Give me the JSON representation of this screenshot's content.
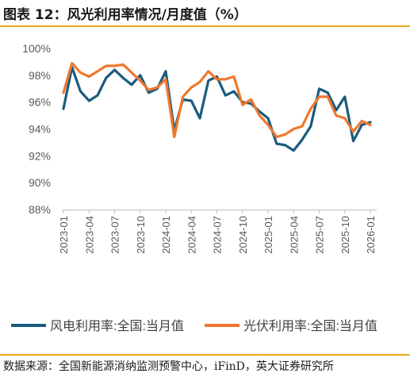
{
  "title": "图表 12：风光利用率情况/月度值（%）",
  "source": "数据来源：全国新能源消纳监测预警中心，iFinD，英大证券研究所",
  "colors": {
    "wind": "#1b5b7e",
    "solar": "#f0782d",
    "accent_rule": "#f0a81a",
    "axis_text": "#595959"
  },
  "chart_data": {
    "type": "line",
    "title": "图表 12：风光利用率情况/月度值（%）",
    "xlabel": "",
    "ylabel": "",
    "ylim": [
      88,
      100
    ],
    "yticks": [
      88,
      90,
      92,
      94,
      96,
      98,
      100
    ],
    "ytick_labels": [
      "88%",
      "90%",
      "92%",
      "94%",
      "96%",
      "98%",
      "100%"
    ],
    "x_tick_labels": [
      "2023-01",
      "2023-04",
      "2023-07",
      "2023-10",
      "2024-01",
      "2024-04",
      "2024-07",
      "2024-10",
      "2025-01",
      "2025-04",
      "2025-07",
      "2025-10",
      "2026-01"
    ],
    "x": [
      "2023-01",
      "2023-02",
      "2023-03",
      "2023-04",
      "2023-05",
      "2023-06",
      "2023-07",
      "2023-08",
      "2023-09",
      "2023-10",
      "2023-11",
      "2023-12",
      "2024-01",
      "2024-02",
      "2024-03",
      "2024-04",
      "2024-05",
      "2024-06",
      "2024-07",
      "2024-08",
      "2024-09",
      "2024-10",
      "2024-11",
      "2024-12",
      "2025-01",
      "2025-02",
      "2025-03",
      "2025-04",
      "2025-05",
      "2025-06",
      "2025-07",
      "2025-08",
      "2025-09",
      "2025-10",
      "2025-11",
      "2025-12",
      "2026-01"
    ],
    "legend_position": "bottom",
    "grid": false,
    "series": [
      {
        "name": "风电利用率:全国:当月值",
        "color": "#1b5b7e",
        "values": [
          95.5,
          98.6,
          96.8,
          96.1,
          96.5,
          97.8,
          98.4,
          97.8,
          97.3,
          98.0,
          96.7,
          97.0,
          98.3,
          93.9,
          96.2,
          96.1,
          94.8,
          97.6,
          97.9,
          96.5,
          96.8,
          96.0,
          95.9,
          95.3,
          94.8,
          92.9,
          92.8,
          92.4,
          93.2,
          94.2,
          97.0,
          96.7,
          95.4,
          96.4,
          93.1,
          94.3,
          94.5
        ]
      },
      {
        "name": "光伏利用率:全国:当月值",
        "color": "#f0782d",
        "values": [
          96.7,
          98.9,
          98.2,
          97.9,
          98.3,
          98.7,
          98.7,
          98.8,
          98.2,
          97.6,
          96.9,
          97.1,
          97.7,
          93.4,
          96.4,
          97.1,
          97.5,
          98.3,
          97.7,
          97.7,
          97.9,
          95.8,
          96.2,
          95.0,
          94.3,
          93.4,
          93.6,
          94.0,
          94.2,
          95.5,
          96.4,
          96.4,
          95.0,
          94.8,
          93.8,
          94.6,
          94.3
        ]
      }
    ]
  }
}
